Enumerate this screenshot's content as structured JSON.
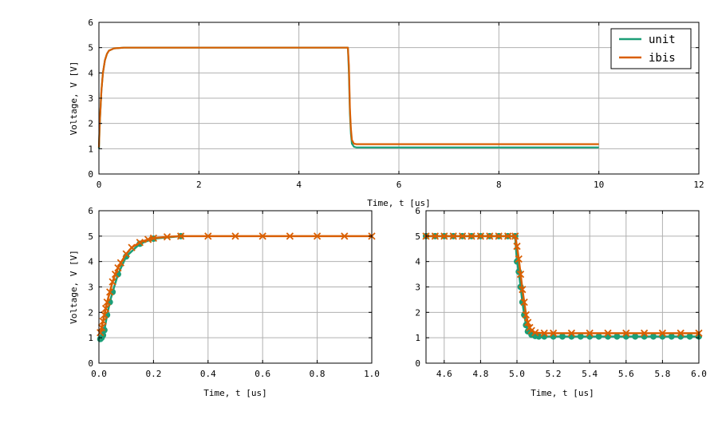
{
  "colors": {
    "unit": "#1b9e77",
    "ibis": "#d95f02"
  },
  "chart_data": [
    {
      "type": "line",
      "id": "top",
      "xlabel": "Time, t [us]",
      "ylabel": "Voltage, V [V]",
      "xlim": [
        0,
        12
      ],
      "ylim": [
        0,
        6
      ],
      "xticks": [
        0,
        2,
        4,
        6,
        8,
        10,
        12
      ],
      "yticks": [
        0,
        1,
        2,
        3,
        4,
        5,
        6
      ],
      "grid": true,
      "legend": {
        "placement": "top-right",
        "entries": [
          "unit",
          "ibis"
        ]
      },
      "series": [
        {
          "name": "unit",
          "color": "#1b9e77",
          "x": [
            0,
            0.01,
            0.02,
            0.05,
            0.08,
            0.12,
            0.16,
            0.2,
            0.3,
            0.5,
            1,
            2,
            3,
            4,
            4.98,
            5.0,
            5.01,
            5.02,
            5.04,
            5.06,
            5.1,
            5.15,
            5.3,
            6,
            8,
            10
          ],
          "y": [
            1.0,
            1.6,
            2.1,
            3.3,
            4.0,
            4.5,
            4.75,
            4.88,
            4.97,
            5.0,
            5.0,
            5.0,
            5.0,
            5.0,
            5.0,
            4.0,
            3.2,
            2.4,
            1.6,
            1.2,
            1.08,
            1.05,
            1.05,
            1.05,
            1.05,
            1.05
          ]
        },
        {
          "name": "ibis",
          "color": "#d95f02",
          "x": [
            0,
            0.01,
            0.02,
            0.05,
            0.08,
            0.12,
            0.16,
            0.2,
            0.3,
            0.5,
            1,
            2,
            3,
            4,
            4.98,
            5.0,
            5.01,
            5.02,
            5.04,
            5.06,
            5.1,
            5.15,
            5.3,
            6,
            8,
            10
          ],
          "y": [
            1.05,
            1.65,
            2.15,
            3.3,
            4.0,
            4.5,
            4.75,
            4.88,
            4.97,
            5.0,
            5.0,
            5.0,
            5.0,
            5.0,
            5.0,
            4.3,
            3.5,
            2.6,
            1.8,
            1.35,
            1.2,
            1.18,
            1.18,
            1.18,
            1.18,
            1.18
          ]
        }
      ]
    },
    {
      "type": "scatter",
      "id": "bottom-left",
      "xlabel": "Time, t [us]",
      "ylabel": "Voltage, V [V]",
      "xlim": [
        0.0,
        1.0
      ],
      "ylim": [
        0,
        6
      ],
      "xticks": [
        0.0,
        0.2,
        0.4,
        0.6,
        0.8,
        1.0
      ],
      "yticks": [
        0,
        1,
        2,
        3,
        4,
        5,
        6
      ],
      "xticklabels": [
        "0.0",
        "0.2",
        "0.4",
        "0.6",
        "0.8",
        "1.0"
      ],
      "grid": true,
      "series": [
        {
          "name": "unit",
          "color": "#1b9e77",
          "marker": "circle",
          "x": [
            0.005,
            0.01,
            0.015,
            0.02,
            0.03,
            0.04,
            0.05,
            0.07,
            0.1,
            0.15,
            0.2,
            0.3
          ],
          "y": [
            0.95,
            1.0,
            1.1,
            1.3,
            1.9,
            2.4,
            2.8,
            3.5,
            4.2,
            4.7,
            4.9,
            5.0
          ]
        },
        {
          "name": "ibis",
          "color": "#d95f02",
          "marker": "x",
          "x": [
            0.005,
            0.01,
            0.015,
            0.02,
            0.025,
            0.03,
            0.04,
            0.05,
            0.06,
            0.07,
            0.08,
            0.1,
            0.12,
            0.15,
            0.18,
            0.2,
            0.25,
            0.3,
            0.4,
            0.5,
            0.6,
            0.7,
            0.8,
            0.9,
            1.0
          ],
          "y": [
            1.2,
            1.4,
            1.65,
            1.9,
            2.15,
            2.4,
            2.8,
            3.2,
            3.5,
            3.75,
            3.95,
            4.3,
            4.55,
            4.75,
            4.87,
            4.92,
            4.97,
            5.0,
            5.0,
            5.0,
            5.0,
            5.0,
            5.0,
            5.0,
            5.0
          ]
        }
      ]
    },
    {
      "type": "scatter",
      "id": "bottom-right",
      "xlabel": "Time, t [us]",
      "ylabel": "",
      "xlim": [
        4.5,
        6.0
      ],
      "ylim": [
        0,
        6
      ],
      "xticks": [
        4.6,
        4.8,
        5.0,
        5.2,
        5.4,
        5.6,
        5.8,
        6.0
      ],
      "yticks": [
        0,
        1,
        2,
        3,
        4,
        5,
        6
      ],
      "xticklabels": [
        "4.6",
        "4.8",
        "5.0",
        "5.2",
        "5.4",
        "5.6",
        "5.8",
        "6.0"
      ],
      "grid": true,
      "series": [
        {
          "name": "unit",
          "color": "#1b9e77",
          "marker": "circle",
          "x": [
            4.5,
            4.55,
            4.6,
            4.65,
            4.7,
            4.75,
            4.8,
            4.85,
            4.9,
            4.95,
            4.99,
            5.0,
            5.01,
            5.02,
            5.03,
            5.04,
            5.05,
            5.06,
            5.08,
            5.1,
            5.12,
            5.15,
            5.2,
            5.25,
            5.3,
            5.35,
            5.4,
            5.45,
            5.5,
            5.55,
            5.6,
            5.65,
            5.7,
            5.75,
            5.8,
            5.85,
            5.9,
            5.95,
            6.0
          ],
          "y": [
            5.0,
            5.0,
            5.0,
            5.0,
            5.0,
            5.0,
            5.0,
            5.0,
            5.0,
            5.0,
            5.0,
            4.0,
            3.6,
            3.0,
            2.4,
            1.9,
            1.5,
            1.25,
            1.12,
            1.07,
            1.05,
            1.05,
            1.05,
            1.05,
            1.05,
            1.05,
            1.05,
            1.05,
            1.05,
            1.05,
            1.05,
            1.05,
            1.05,
            1.05,
            1.05,
            1.05,
            1.05,
            1.05,
            1.05
          ]
        },
        {
          "name": "ibis",
          "color": "#d95f02",
          "marker": "x",
          "x": [
            4.5,
            4.55,
            4.6,
            4.65,
            4.7,
            4.75,
            4.8,
            4.85,
            4.9,
            4.95,
            4.99,
            5.0,
            5.01,
            5.02,
            5.03,
            5.04,
            5.05,
            5.06,
            5.07,
            5.08,
            5.1,
            5.15,
            5.2,
            5.3,
            5.4,
            5.5,
            5.6,
            5.7,
            5.8,
            5.9,
            6.0
          ],
          "y": [
            5.0,
            5.0,
            5.0,
            5.0,
            5.0,
            5.0,
            5.0,
            5.0,
            5.0,
            5.0,
            5.0,
            4.6,
            4.1,
            3.5,
            2.9,
            2.4,
            1.9,
            1.6,
            1.4,
            1.28,
            1.2,
            1.18,
            1.18,
            1.18,
            1.18,
            1.18,
            1.18,
            1.18,
            1.18,
            1.18,
            1.18
          ]
        }
      ]
    }
  ]
}
